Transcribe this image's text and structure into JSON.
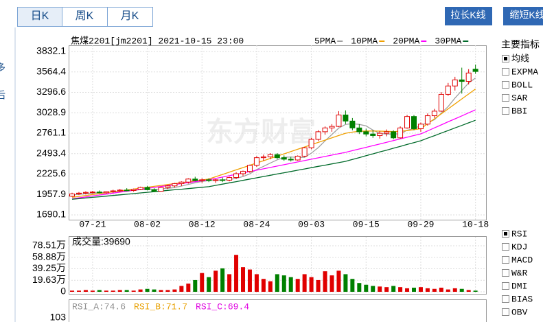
{
  "tabs": [
    "日K",
    "周K",
    "月K"
  ],
  "buttons": [
    "拉长K线",
    "缩短K线"
  ],
  "sidebar": [
    "多",
    "后"
  ],
  "header": "焦煤2201[jm2201] 2021-10-15 23:00",
  "watermark": "东方财富",
  "indicators": {
    "title": "主要指标",
    "main": [
      {
        "label": "均线",
        "checked": true
      },
      {
        "label": "EXPMA",
        "checked": false
      },
      {
        "label": "BOLL",
        "checked": false
      },
      {
        "label": "SAR",
        "checked": false
      },
      {
        "label": "BBI",
        "checked": false
      }
    ],
    "sub": [
      {
        "label": "RSI",
        "checked": true
      },
      {
        "label": "KDJ",
        "checked": false
      },
      {
        "label": "MACD",
        "checked": false
      },
      {
        "label": "W&R",
        "checked": false
      },
      {
        "label": "DMI",
        "checked": false
      },
      {
        "label": "BIAS",
        "checked": false
      },
      {
        "label": "OBV",
        "checked": false
      }
    ]
  },
  "chart_data": [
    {
      "type": "candlestick",
      "up_color": "#e00000",
      "down_color": "#008000",
      "grid": true,
      "categories": [
        null,
        null,
        null,
        "07-21",
        null,
        null,
        null,
        null,
        null,
        null,
        null,
        "08-02",
        null,
        null,
        null,
        null,
        null,
        null,
        null,
        "08-12",
        null,
        null,
        null,
        null,
        null,
        null,
        null,
        "08-24",
        null,
        null,
        null,
        null,
        null,
        null,
        null,
        "09-03",
        null,
        null,
        null,
        null,
        null,
        null,
        null,
        "09-15",
        null,
        null,
        null,
        null,
        null,
        null,
        null,
        "09-29",
        null,
        null,
        null,
        null,
        null,
        null,
        null,
        "10-18"
      ],
      "open": [
        1935,
        1965,
        1975,
        1985,
        1990,
        1980,
        1995,
        2005,
        2015,
        2010,
        2025,
        2050,
        2020,
        2000,
        2050,
        2070,
        2100,
        2120,
        2160,
        2140,
        2150,
        2140,
        2150,
        2145,
        2180,
        2230,
        2260,
        2340,
        2440,
        2450,
        2480,
        2440,
        2420,
        2410,
        2460,
        2570,
        2680,
        2780,
        2830,
        2850,
        3000,
        2920,
        2830,
        2780,
        2750,
        2730,
        2760,
        2780,
        2700,
        2830,
        2980,
        2820,
        2880,
        2990,
        3050,
        3270,
        3380,
        3460,
        3440,
        3600
      ],
      "high": [
        1980,
        1990,
        2000,
        2005,
        2010,
        2000,
        2020,
        2030,
        2040,
        2035,
        2060,
        2070,
        2040,
        2060,
        2080,
        2110,
        2130,
        2170,
        2190,
        2170,
        2170,
        2160,
        2180,
        2190,
        2250,
        2270,
        2350,
        2460,
        2480,
        2500,
        2500,
        2470,
        2450,
        2470,
        2580,
        2700,
        2800,
        2850,
        2880,
        3050,
        3060,
        2960,
        2880,
        2820,
        2800,
        2790,
        2810,
        2800,
        2850,
        3000,
        3000,
        2900,
        3020,
        3080,
        3300,
        3420,
        3500,
        3620,
        3600,
        3660
      ],
      "low": [
        1925,
        1950,
        1960,
        1970,
        1975,
        1965,
        1980,
        1990,
        2000,
        1995,
        2015,
        2010,
        1990,
        1995,
        2030,
        2050,
        2070,
        2100,
        2130,
        2110,
        2120,
        2110,
        2120,
        2130,
        2160,
        2200,
        2240,
        2320,
        2400,
        2420,
        2420,
        2400,
        2390,
        2400,
        2450,
        2550,
        2660,
        2740,
        2780,
        2840,
        2880,
        2800,
        2750,
        2720,
        2700,
        2690,
        2720,
        2680,
        2690,
        2820,
        2800,
        2780,
        2860,
        2960,
        3040,
        3250,
        3320,
        3280,
        3400,
        3540
      ],
      "close": [
        1965,
        1975,
        1985,
        1990,
        1980,
        1995,
        2005,
        2015,
        2010,
        2025,
        2050,
        2020,
        2000,
        2050,
        2070,
        2100,
        2120,
        2160,
        2140,
        2150,
        2140,
        2150,
        2145,
        2180,
        2230,
        2260,
        2340,
        2440,
        2450,
        2480,
        2440,
        2420,
        2410,
        2460,
        2570,
        2680,
        2780,
        2830,
        2850,
        3000,
        2920,
        2830,
        2780,
        2750,
        2730,
        2760,
        2780,
        2700,
        2830,
        2980,
        2820,
        2880,
        2990,
        3050,
        3270,
        3380,
        3460,
        3440,
        3550,
        3570
      ],
      "series": [
        {
          "name": "5PMA",
          "color": "#a0a0a0",
          "values": [
            1950,
            1960,
            1968,
            1975,
            1980,
            1985,
            1991,
            1998,
            2005,
            2012,
            2021,
            2024,
            2021,
            2031,
            2038,
            2048,
            2068,
            2090,
            2110,
            2128,
            2140,
            2146,
            2147,
            2153,
            2170,
            2193,
            2228,
            2284,
            2326,
            2370,
            2412,
            2444,
            2450,
            2442,
            2444,
            2500,
            2572,
            2660,
            2744,
            2828,
            2876,
            2886,
            2876,
            2856,
            2802,
            2758,
            2748,
            2750,
            2752,
            2800,
            2822,
            2862,
            2900,
            2938,
            3024,
            3110,
            3222,
            3320,
            3420,
            3484
          ]
        },
        {
          "name": "10PMA",
          "color": "#f0a000",
          "values": [
            1920,
            1932,
            1944,
            1956,
            1968,
            1980,
            1992,
            2004,
            2016,
            2028,
            2040,
            2052,
            2064,
            2076,
            2088,
            2100,
            2112,
            2124,
            2136,
            2148,
            2160,
            2190,
            2220,
            2250,
            2280,
            2310,
            2340,
            2370,
            2400,
            2430,
            2460,
            2490,
            2520,
            2550,
            2580,
            2610,
            2640,
            2670,
            2700,
            2730,
            2760,
            2775,
            2785,
            2790,
            2790,
            2788,
            2785,
            2782,
            2785,
            2795,
            2808,
            2820,
            2885,
            2950,
            3015,
            3080,
            3145,
            3210,
            3275,
            3340
          ]
        },
        {
          "name": "20PMA",
          "color": "#ff00ff",
          "values": [
            1900,
            1913,
            1925,
            1938,
            1950,
            1963,
            1975,
            1988,
            2000,
            2013,
            2025,
            2038,
            2050,
            2063,
            2075,
            2088,
            2100,
            2113,
            2125,
            2138,
            2150,
            2168,
            2186,
            2204,
            2222,
            2240,
            2258,
            2276,
            2294,
            2312,
            2330,
            2348,
            2366,
            2384,
            2402,
            2420,
            2438,
            2456,
            2474,
            2492,
            2510,
            2532,
            2554,
            2576,
            2598,
            2620,
            2642,
            2664,
            2686,
            2708,
            2730,
            2752,
            2791,
            2831,
            2870,
            2910,
            2949,
            2988,
            3028,
            3067
          ]
        },
        {
          "name": "30PMA",
          "color": "#006a2a",
          "values": [
            1895,
            1903,
            1911,
            1920,
            1928,
            1936,
            1945,
            1953,
            1961,
            1969,
            1978,
            1986,
            1994,
            2002,
            2011,
            2019,
            2027,
            2035,
            2044,
            2052,
            2060,
            2077,
            2093,
            2110,
            2126,
            2143,
            2160,
            2176,
            2193,
            2209,
            2226,
            2243,
            2259,
            2276,
            2292,
            2309,
            2326,
            2342,
            2359,
            2375,
            2392,
            2417,
            2441,
            2466,
            2490,
            2515,
            2539,
            2564,
            2588,
            2613,
            2637,
            2662,
            2696,
            2729,
            2763,
            2796,
            2830,
            2863,
            2897,
            2930
          ]
        }
      ],
      "ylim": [
        1627,
        3913
      ],
      "yticks": [
        1690.1,
        1957.9,
        2225.6,
        2493.4,
        2761.1,
        3028.9,
        3296.6,
        3564.4,
        3832.1
      ]
    },
    {
      "type": "bar",
      "title": "成交量:39690",
      "up_color": "#e00000",
      "down_color": "#008000",
      "values": [
        2,
        2,
        3,
        2,
        3,
        2,
        2,
        3,
        3,
        2,
        4,
        5,
        4,
        3,
        3,
        4,
        10,
        14,
        20,
        32,
        25,
        36,
        40,
        30,
        63,
        42,
        38,
        30,
        22,
        18,
        30,
        28,
        25,
        22,
        30,
        25,
        20,
        35,
        28,
        36,
        30,
        22,
        15,
        12,
        10,
        9,
        8,
        10,
        8,
        6,
        7,
        8,
        6,
        5,
        7,
        4,
        6,
        5,
        3,
        2
      ],
      "ylim": [
        -3.5,
        93.7
      ],
      "yticks": [
        0,
        {
          "value": 19.63,
          "label": "19.63万"
        },
        {
          "value": 39.25,
          "label": "39.25万"
        },
        {
          "value": 58.88,
          "label": "58.88万"
        },
        {
          "value": 78.51,
          "label": "78.51万"
        }
      ]
    },
    {
      "type": "line",
      "legend": [
        {
          "label": "RSI_A:74.6",
          "color": "#909090"
        },
        {
          "label": "RSI_B:71.7",
          "color": "#e8a000"
        },
        {
          "label": "RSI_C:69.4",
          "color": "#e000e0"
        }
      ],
      "yticks": [
        103
      ]
    }
  ]
}
